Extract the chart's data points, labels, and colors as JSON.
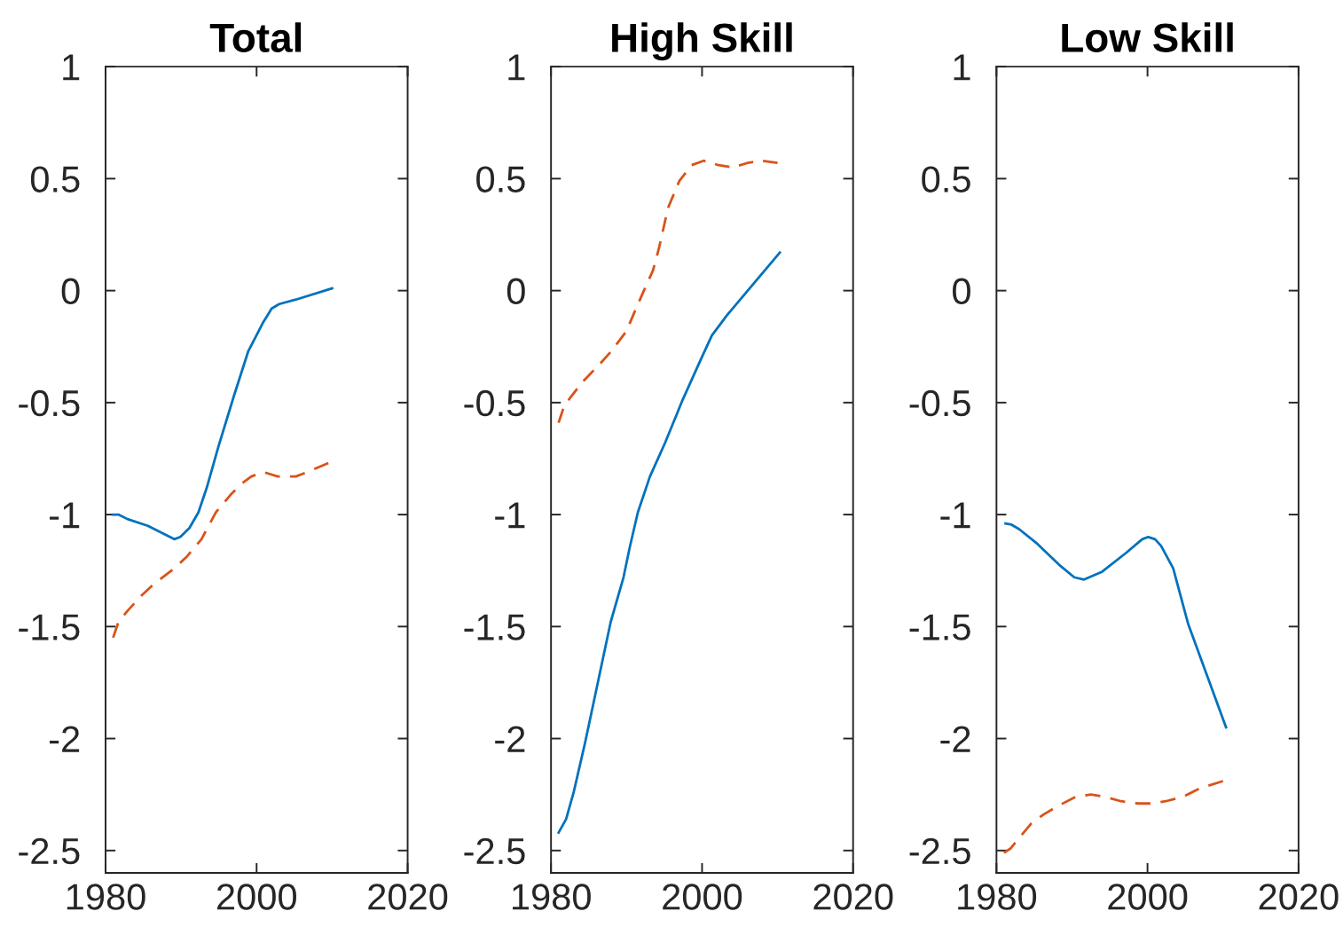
{
  "chart_data": [
    {
      "type": "line",
      "title": "Total",
      "xlim": [
        1980,
        2020
      ],
      "xticks": [
        1980,
        2000,
        2020
      ],
      "ylim": [
        -2.6,
        1
      ],
      "yticks": [
        -2.5,
        -2,
        -1.5,
        -1,
        -0.5,
        0,
        0.5,
        1
      ],
      "series": [
        {
          "color": "#0072bd",
          "line_style": "solid",
          "x": [
            1981,
            1981.7,
            1982.9,
            1985.6,
            1989.1,
            1989.9,
            1991.1,
            1992.3,
            1993.4,
            1995,
            1997,
            1998.9,
            2000.9,
            2002,
            2003,
            2005.2,
            2010
          ],
          "values": [
            -1.0,
            -1.0,
            -1.02,
            -1.05,
            -1.11,
            -1.1,
            -1.06,
            -0.99,
            -0.88,
            -0.69,
            -0.47,
            -0.27,
            -0.14,
            -0.08,
            -0.06,
            -0.04,
            0.01
          ]
        },
        {
          "color": "#d95319",
          "line_style": "dashed",
          "x": [
            1981,
            1981.7,
            1982.9,
            1984.8,
            1986.4,
            1989.1,
            1990.7,
            1992.7,
            1994.6,
            1996.6,
            1998.1,
            1999.3,
            2000.9,
            2002.8,
            2005.2,
            2006.7,
            2009.5
          ],
          "values": [
            -1.55,
            -1.48,
            -1.43,
            -1.36,
            -1.31,
            -1.24,
            -1.19,
            -1.11,
            -0.99,
            -0.91,
            -0.86,
            -0.83,
            -0.81,
            -0.83,
            -0.83,
            -0.81,
            -0.77
          ]
        }
      ]
    },
    {
      "type": "line",
      "title": "High Skill",
      "xlim": [
        1980,
        2020
      ],
      "xticks": [
        1980,
        2000,
        2020
      ],
      "ylim": [
        -2.6,
        1
      ],
      "yticks": [
        -2.5,
        -2,
        -1.5,
        -1,
        -0.5,
        0,
        0.5,
        1
      ],
      "series": [
        {
          "color": "#0072bd",
          "line_style": "solid",
          "x": [
            1981,
            1982,
            1983,
            1984.5,
            1986.2,
            1987.9,
            1989.6,
            1990.4,
            1991.5,
            1993.1,
            1995.1,
            1997.4,
            1999.8,
            2001.3,
            2003.3,
            2010.3
          ],
          "values": [
            -2.42,
            -2.36,
            -2.24,
            -2.02,
            -1.75,
            -1.48,
            -1.28,
            -1.15,
            -0.99,
            -0.83,
            -0.68,
            -0.49,
            -0.31,
            -0.2,
            -0.11,
            0.17
          ]
        },
        {
          "color": "#d95319",
          "line_style": "dashed",
          "x": [
            1981,
            1981.6,
            1982.5,
            1984.1,
            1986.4,
            1988,
            1990,
            1991,
            1992.3,
            1993.5,
            1994.3,
            1995.5,
            1997,
            1998.6,
            2000.2,
            2002.2,
            2004.1,
            2006,
            2008,
            2010
          ],
          "values": [
            -0.59,
            -0.53,
            -0.48,
            -0.41,
            -0.33,
            -0.27,
            -0.18,
            -0.1,
            0.0,
            0.09,
            0.19,
            0.37,
            0.49,
            0.56,
            0.58,
            0.56,
            0.55,
            0.57,
            0.58,
            0.57
          ]
        }
      ]
    },
    {
      "type": "line",
      "title": "Low Skill",
      "xlim": [
        1980,
        2020
      ],
      "xticks": [
        1980,
        2000,
        2020
      ],
      "ylim": [
        -2.6,
        1
      ],
      "yticks": [
        -2.5,
        -2,
        -1.5,
        -1,
        -0.5,
        0,
        0.5,
        1
      ],
      "series": [
        {
          "color": "#0072bd",
          "line_style": "solid",
          "x": [
            1981.2,
            1982,
            1983,
            1985.4,
            1988.5,
            1990.3,
            1991.6,
            1994,
            1997.2,
            1999.3,
            2000.1,
            2001,
            2001.8,
            2003.4,
            2005.4,
            2010.4
          ],
          "values": [
            -1.04,
            -1.045,
            -1.065,
            -1.13,
            -1.23,
            -1.28,
            -1.29,
            -1.255,
            -1.17,
            -1.11,
            -1.1,
            -1.11,
            -1.14,
            -1.24,
            -1.49,
            -1.95
          ]
        },
        {
          "color": "#d95319",
          "line_style": "dashed",
          "x": [
            1981,
            1981.9,
            1983.1,
            1984.6,
            1986.2,
            1988.2,
            1990.5,
            1992.5,
            1994.4,
            1996.5,
            1998.8,
            2000.4,
            2002.4,
            2004.7,
            2007.1,
            2010
          ],
          "values": [
            -2.51,
            -2.49,
            -2.44,
            -2.38,
            -2.34,
            -2.3,
            -2.26,
            -2.25,
            -2.26,
            -2.28,
            -2.29,
            -2.29,
            -2.28,
            -2.26,
            -2.22,
            -2.19
          ]
        }
      ]
    }
  ]
}
